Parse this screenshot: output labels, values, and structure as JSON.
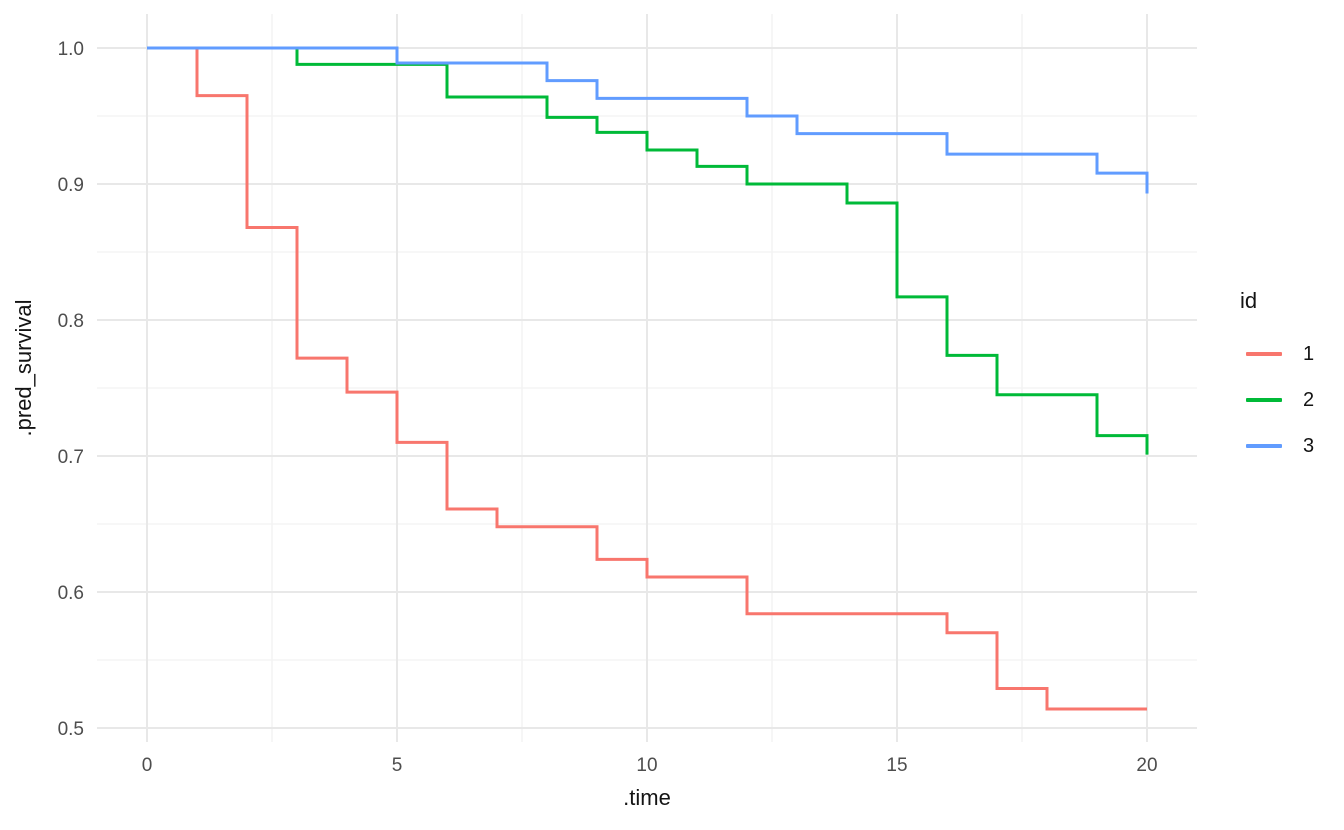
{
  "chart_data": {
    "type": "line",
    "subtype": "step",
    "title": "",
    "xlabel": ".time",
    "ylabel": ".pred_survival",
    "grid": "on",
    "legend_position": "right",
    "x_axis": {
      "min": 0,
      "max": 20,
      "ticks": [
        {
          "value": 0,
          "label": "0"
        },
        {
          "value": 5,
          "label": "5"
        },
        {
          "value": 10,
          "label": "10"
        },
        {
          "value": 15,
          "label": "15"
        },
        {
          "value": 20,
          "label": "20"
        }
      ],
      "minor": [
        2.5,
        7.5,
        12.5,
        17.5
      ]
    },
    "y_axis": {
      "min": 0.5,
      "max": 1.0,
      "ticks": [
        {
          "value": 1.0,
          "label": "1.0"
        },
        {
          "value": 0.9,
          "label": "0.9"
        },
        {
          "value": 0.8,
          "label": "0.8"
        },
        {
          "value": 0.7,
          "label": "0.7"
        },
        {
          "value": 0.6,
          "label": "0.6"
        },
        {
          "value": 0.5,
          "label": "0.5"
        }
      ],
      "minor": [
        0.95,
        0.85,
        0.75,
        0.65,
        0.55
      ]
    },
    "legend": {
      "title": "id",
      "entries": [
        {
          "label": "1",
          "color": "#F8766D"
        },
        {
          "label": "2",
          "color": "#00BA38"
        },
        {
          "label": "3",
          "color": "#619CFF"
        }
      ]
    },
    "series": [
      {
        "name": "1",
        "color": "#F8766D",
        "points": [
          [
            0,
            1.0
          ],
          [
            1,
            0.965
          ],
          [
            2,
            0.868
          ],
          [
            3,
            0.772
          ],
          [
            4,
            0.747
          ],
          [
            5,
            0.71
          ],
          [
            6,
            0.661
          ],
          [
            7,
            0.648
          ],
          [
            9,
            0.624
          ],
          [
            10,
            0.611
          ],
          [
            12,
            0.584
          ],
          [
            16,
            0.57
          ],
          [
            17,
            0.529
          ],
          [
            18,
            0.514
          ]
        ]
      },
      {
        "name": "2",
        "color": "#00BA38",
        "points": [
          [
            0,
            1.0
          ],
          [
            3,
            0.988
          ],
          [
            6,
            0.964
          ],
          [
            8,
            0.949
          ],
          [
            9,
            0.938
          ],
          [
            10,
            0.925
          ],
          [
            11,
            0.913
          ],
          [
            12,
            0.9
          ],
          [
            14,
            0.886
          ],
          [
            15,
            0.817
          ],
          [
            16,
            0.774
          ],
          [
            17,
            0.745
          ],
          [
            19,
            0.715
          ],
          [
            20,
            0.701
          ]
        ]
      },
      {
        "name": "3",
        "color": "#619CFF",
        "points": [
          [
            0,
            1.0
          ],
          [
            5,
            0.989
          ],
          [
            8,
            0.976
          ],
          [
            9,
            0.963
          ],
          [
            12,
            0.95
          ],
          [
            13,
            0.937
          ],
          [
            16,
            0.922
          ],
          [
            19,
            0.908
          ],
          [
            20,
            0.893
          ]
        ]
      }
    ],
    "colors": {
      "background": "#FFFFFF",
      "grid_major": "#E8E8E8",
      "grid_minor": "#F2F2F2",
      "tick_label": "#4D4D4D",
      "axis_title": "#141414"
    }
  }
}
